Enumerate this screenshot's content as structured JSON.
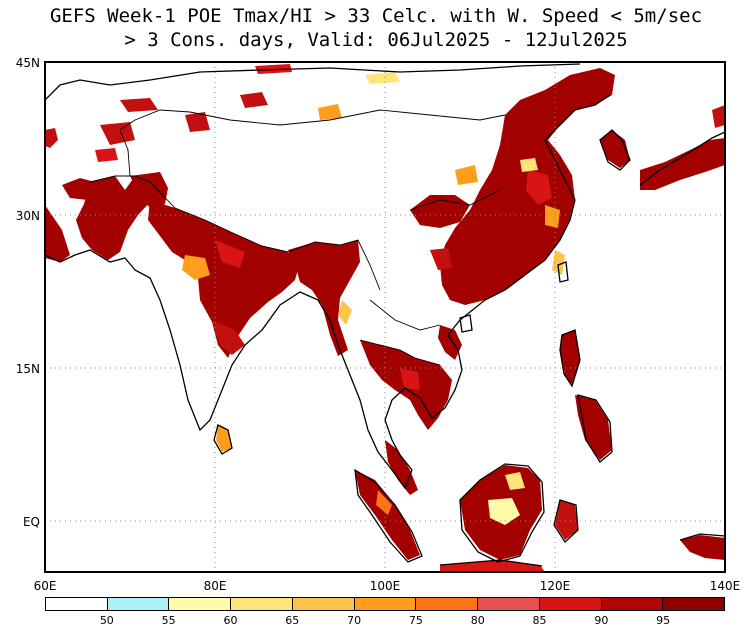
{
  "title": {
    "line1": "GEFS Week-1 POE Tmax/HI > 33 Celc. with W. Speed < 5m/sec",
    "line2": "> 3 Cons. days, Valid: 06Jul2025 - 12Jul2025"
  },
  "axes": {
    "lon_labels": [
      "60E",
      "80E",
      "100E",
      "120E",
      "140E"
    ],
    "lat_labels": [
      "45N",
      "30N",
      "15N",
      "EQ"
    ],
    "lon_range": [
      60,
      140
    ],
    "lat_range": [
      -5,
      45
    ]
  },
  "legend": {
    "labels": [
      "50",
      "55",
      "60",
      "65",
      "70",
      "75",
      "80",
      "85",
      "90",
      "95"
    ],
    "colors": [
      "#ffffff",
      "#aef0f8",
      "#fffaaa",
      "#ffe47a",
      "#ffc44a",
      "#ff9d1c",
      "#ff7417",
      "#e55050",
      "#d81414",
      "#b30505",
      "#8c0000"
    ]
  },
  "map": {
    "gridlines": "dotted",
    "land_color": "#ffffff",
    "outline_color": "#000000"
  }
}
